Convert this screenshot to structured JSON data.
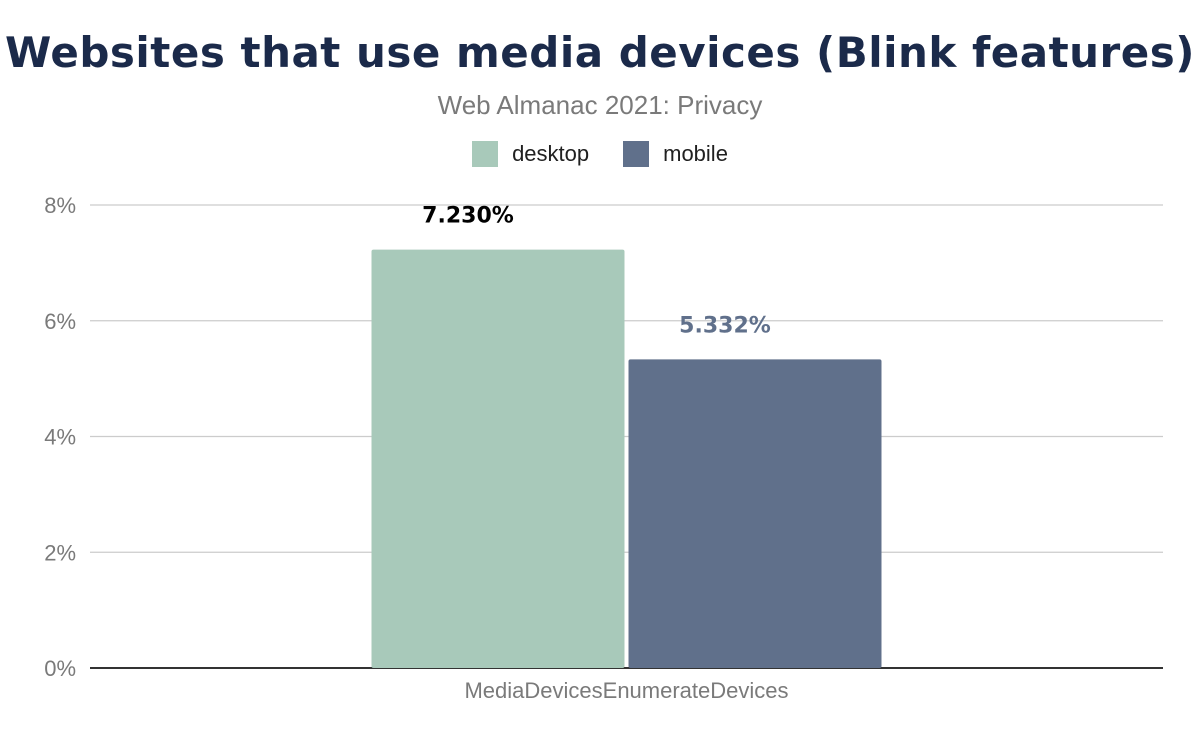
{
  "chart_data": {
    "type": "bar",
    "title": "Websites that use media devices (Blink features)",
    "subtitle": "Web Almanac 2021: Privacy",
    "categories": [
      "MediaDevicesEnumerateDevices"
    ],
    "series": [
      {
        "name": "desktop",
        "values": [
          7.23
        ],
        "label": "7.230%",
        "color": "#a8c9ba",
        "label_color": "#000000"
      },
      {
        "name": "mobile",
        "values": [
          5.332
        ],
        "label": "5.332%",
        "color": "#60708b",
        "label_color": "#60708b"
      }
    ],
    "yticks": [
      "0%",
      "2%",
      "4%",
      "6%",
      "8%"
    ],
    "ylim": [
      0,
      8
    ],
    "grid": true,
    "legend_position": "top"
  }
}
